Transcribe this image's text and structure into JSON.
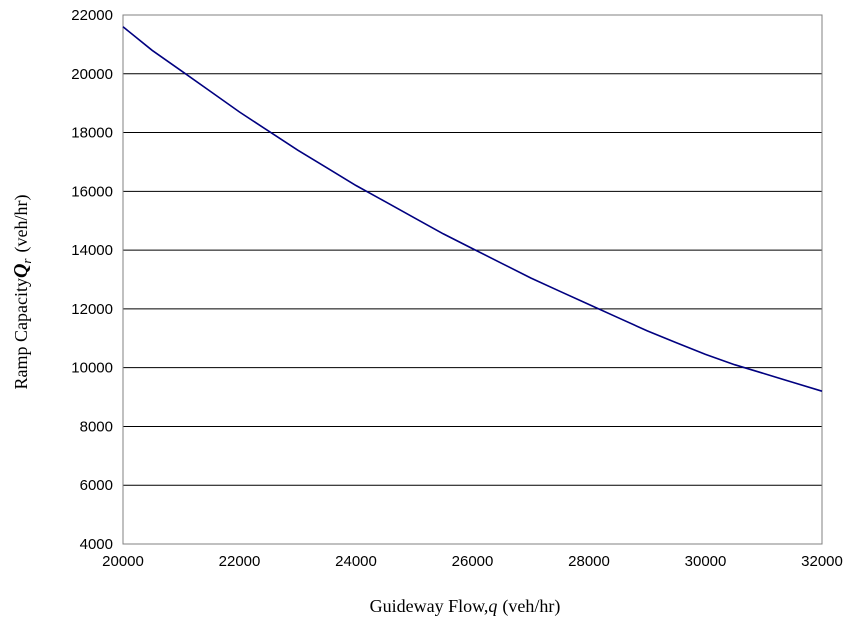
{
  "chart_data": {
    "type": "line",
    "title": "",
    "xlabel": {
      "text": "Guideway Flow,",
      "var": "q",
      "unit": "(veh/hr)"
    },
    "ylabel": {
      "text": "Ramp Capacity",
      "var": "Q",
      "sub": "r",
      "unit": "(veh/hr)"
    },
    "xlim": [
      20000,
      32000
    ],
    "ylim": [
      4000,
      22000
    ],
    "xticks": [
      20000,
      22000,
      24000,
      26000,
      28000,
      30000,
      32000
    ],
    "yticks": [
      4000,
      6000,
      8000,
      10000,
      12000,
      14000,
      16000,
      18000,
      20000,
      22000
    ],
    "grid": {
      "horizontal": true,
      "vertical": false
    },
    "legend": "none",
    "series": [
      {
        "color": "#000080",
        "x": [
          20000,
          20500,
          21000,
          21500,
          22000,
          22500,
          23000,
          23500,
          24000,
          24500,
          25000,
          25500,
          26000,
          26500,
          27000,
          27500,
          28000,
          28500,
          29000,
          29500,
          30000,
          30500,
          31000,
          31500,
          32000
        ],
        "y": [
          21600,
          20800,
          20100,
          19400,
          18700,
          18050,
          17400,
          16800,
          16200,
          15650,
          15100,
          14550,
          14050,
          13550,
          13050,
          12600,
          12150,
          11700,
          11250,
          10850,
          10450,
          10100,
          9800,
          9500,
          9200
        ]
      }
    ]
  }
}
